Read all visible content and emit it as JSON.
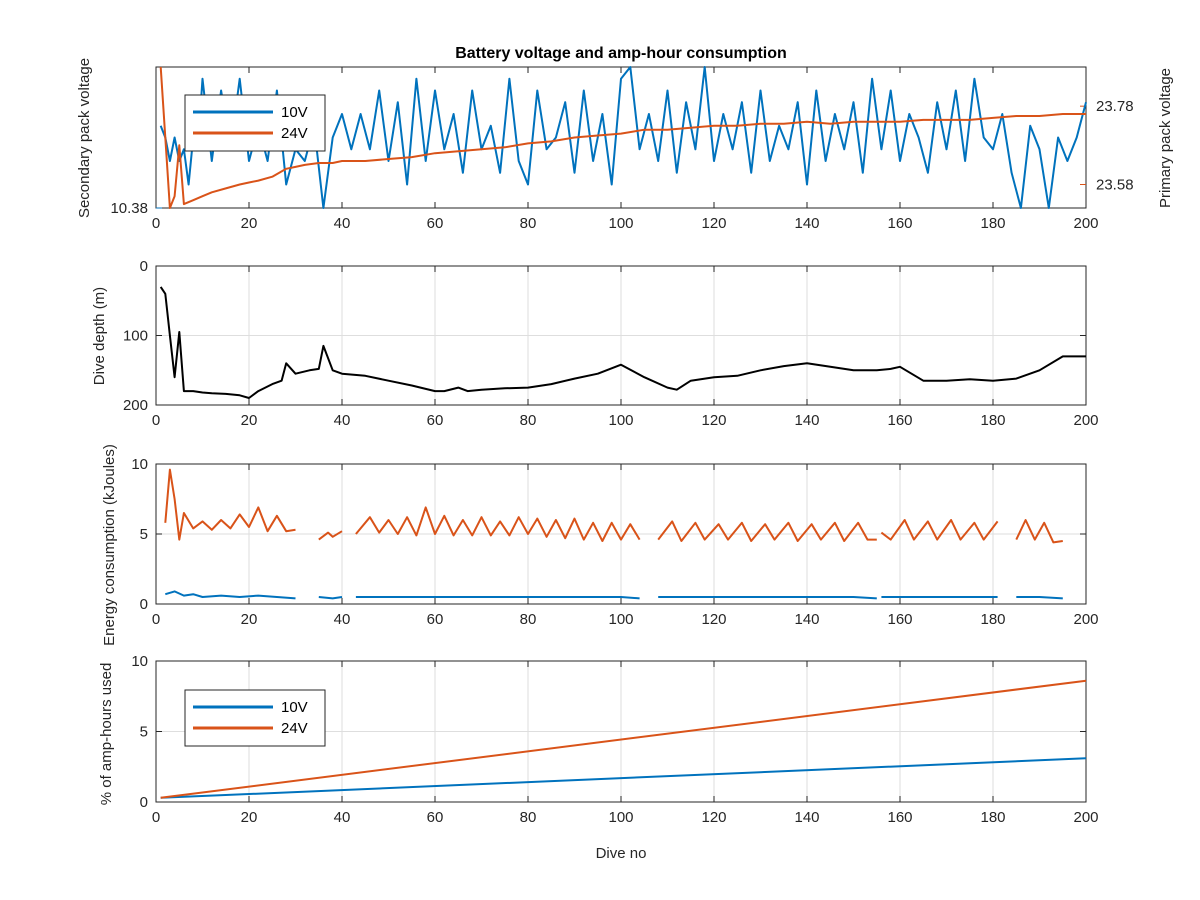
{
  "figure": {
    "title": "Battery voltage and amp-hour consumption",
    "xlabel": "Dive no"
  },
  "colors": {
    "blue": "#0072BD",
    "orange": "#D95319",
    "black": "#000000",
    "grid": "#DEDEDE",
    "axis": "#262626"
  },
  "chart_data": [
    {
      "type": "line",
      "name_key": "voltage",
      "title": "Battery voltage and amp-hour consumption",
      "xlim": [
        0,
        200
      ],
      "xticks": [
        0,
        20,
        40,
        60,
        80,
        100,
        120,
        140,
        160,
        180,
        200
      ],
      "ylabel_left": "Secondary pack voltage",
      "ylabel_right": "Primary pack voltage",
      "yticks_left": [
        10.38
      ],
      "yticks_right": [
        23.58,
        23.78
      ],
      "ylim_left": [
        10.38,
        10.5
      ],
      "ylim_right": [
        23.52,
        23.88
      ],
      "legend": {
        "placement": "top-left",
        "entries": [
          "10V",
          "24V"
        ]
      },
      "grid": false,
      "series": [
        {
          "name": "10V",
          "axis": "left",
          "color": "#0072BD",
          "x": [
            1,
            2,
            3,
            4,
            5,
            6,
            7,
            8,
            9,
            10,
            12,
            14,
            16,
            18,
            20,
            22,
            24,
            26,
            28,
            30,
            32,
            34,
            36,
            38,
            40,
            42,
            44,
            46,
            48,
            50,
            52,
            54,
            56,
            58,
            60,
            62,
            64,
            66,
            68,
            70,
            72,
            74,
            76,
            78,
            80,
            82,
            84,
            86,
            88,
            90,
            92,
            94,
            96,
            98,
            100,
            102,
            104,
            106,
            108,
            110,
            112,
            114,
            116,
            118,
            120,
            122,
            124,
            126,
            128,
            130,
            132,
            134,
            136,
            138,
            140,
            142,
            144,
            146,
            148,
            150,
            152,
            154,
            156,
            158,
            160,
            162,
            164,
            166,
            168,
            170,
            172,
            174,
            176,
            178,
            180,
            182,
            184,
            186,
            188,
            190,
            192,
            194,
            196,
            198,
            200
          ],
          "values": [
            10.45,
            10.44,
            10.42,
            10.44,
            10.42,
            10.43,
            10.4,
            10.44,
            10.43,
            10.49,
            10.42,
            10.48,
            10.43,
            10.49,
            10.42,
            10.45,
            10.42,
            10.48,
            10.4,
            10.43,
            10.42,
            10.45,
            10.38,
            10.44,
            10.46,
            10.43,
            10.46,
            10.43,
            10.48,
            10.42,
            10.47,
            10.4,
            10.49,
            10.42,
            10.48,
            10.43,
            10.46,
            10.41,
            10.48,
            10.43,
            10.45,
            10.41,
            10.49,
            10.42,
            10.4,
            10.48,
            10.43,
            10.44,
            10.47,
            10.41,
            10.48,
            10.42,
            10.46,
            10.4,
            10.49,
            10.5,
            10.43,
            10.46,
            10.42,
            10.48,
            10.41,
            10.47,
            10.43,
            10.5,
            10.42,
            10.46,
            10.43,
            10.47,
            10.41,
            10.48,
            10.42,
            10.45,
            10.43,
            10.47,
            10.4,
            10.48,
            10.42,
            10.46,
            10.43,
            10.47,
            10.41,
            10.49,
            10.43,
            10.48,
            10.42,
            10.46,
            10.44,
            10.41,
            10.47,
            10.43,
            10.48,
            10.42,
            10.49,
            10.44,
            10.43,
            10.46,
            10.41,
            10.38,
            10.45,
            10.43,
            10.38,
            10.44,
            10.42,
            10.44,
            10.47
          ]
        },
        {
          "name": "24V",
          "axis": "right",
          "color": "#D95319",
          "x": [
            1,
            2,
            3,
            4,
            5,
            6,
            8,
            10,
            12,
            15,
            18,
            20,
            22,
            25,
            28,
            30,
            32,
            35,
            38,
            40,
            45,
            50,
            55,
            60,
            65,
            70,
            75,
            80,
            85,
            90,
            95,
            100,
            105,
            110,
            115,
            120,
            125,
            130,
            135,
            140,
            145,
            150,
            155,
            160,
            165,
            170,
            175,
            180,
            185,
            190,
            195,
            200
          ],
          "values": [
            23.88,
            23.7,
            23.52,
            23.55,
            23.68,
            23.53,
            23.54,
            23.55,
            23.56,
            23.57,
            23.58,
            23.585,
            23.59,
            23.6,
            23.62,
            23.625,
            23.63,
            23.635,
            23.635,
            23.64,
            23.64,
            23.645,
            23.65,
            23.66,
            23.665,
            23.67,
            23.675,
            23.685,
            23.69,
            23.7,
            23.705,
            23.71,
            23.72,
            23.72,
            23.725,
            23.73,
            23.73,
            23.735,
            23.735,
            23.74,
            23.735,
            23.74,
            23.74,
            23.74,
            23.745,
            23.745,
            23.745,
            23.75,
            23.755,
            23.755,
            23.76,
            23.76
          ]
        }
      ]
    },
    {
      "type": "line",
      "name_key": "depth",
      "xlim": [
        0,
        200
      ],
      "xticks": [
        0,
        20,
        40,
        60,
        80,
        100,
        120,
        140,
        160,
        180,
        200
      ],
      "ylabel": "Dive depth (m)",
      "ylim": [
        0,
        200
      ],
      "yticks": [
        0,
        100,
        200
      ],
      "reversed": true,
      "grid": true,
      "series": [
        {
          "color": "#000000",
          "x": [
            1,
            2,
            3,
            4,
            5,
            6,
            8,
            10,
            12,
            15,
            18,
            20,
            22,
            25,
            27,
            28,
            30,
            33,
            35,
            36,
            38,
            40,
            45,
            50,
            55,
            60,
            62,
            65,
            67,
            70,
            75,
            80,
            85,
            90,
            95,
            100,
            105,
            110,
            112,
            115,
            120,
            125,
            130,
            135,
            140,
            145,
            150,
            155,
            158,
            160,
            165,
            170,
            175,
            180,
            185,
            190,
            195,
            200
          ],
          "values": [
            30,
            40,
            100,
            160,
            95,
            180,
            180,
            182,
            183,
            184,
            186,
            190,
            180,
            170,
            165,
            140,
            155,
            150,
            148,
            115,
            150,
            155,
            158,
            165,
            172,
            180,
            180,
            175,
            180,
            178,
            176,
            175,
            170,
            162,
            155,
            142,
            160,
            175,
            178,
            165,
            160,
            158,
            150,
            144,
            140,
            145,
            150,
            150,
            148,
            145,
            165,
            165,
            163,
            165,
            162,
            150,
            130,
            130
          ]
        }
      ]
    },
    {
      "type": "line",
      "name_key": "energy",
      "xlim": [
        0,
        200
      ],
      "xticks": [
        0,
        20,
        40,
        60,
        80,
        100,
        120,
        140,
        160,
        180,
        200
      ],
      "ylabel": "Energy consumption (kJoules)",
      "ylim": [
        0,
        10
      ],
      "yticks": [
        0,
        5,
        10
      ],
      "grid": true,
      "series": [
        {
          "name": "24V",
          "color": "#D95319",
          "segments": [
            {
              "x": [
                2,
                3,
                4,
                5,
                6,
                8,
                10,
                12,
                14,
                16,
                18,
                20,
                22,
                24,
                26,
                28,
                30
              ],
              "values": [
                5.8,
                9.6,
                7.5,
                4.6,
                6.5,
                5.4,
                5.9,
                5.3,
                6.0,
                5.4,
                6.4,
                5.5,
                6.9,
                5.2,
                6.3,
                5.2,
                5.3
              ]
            },
            {
              "x": [
                35,
                37,
                38,
                40
              ],
              "values": [
                4.6,
                5.1,
                4.8,
                5.2
              ]
            },
            {
              "x": [
                43,
                46,
                48,
                50,
                52,
                54,
                56,
                58,
                60,
                62,
                64,
                66,
                68,
                70,
                72,
                74,
                76,
                78,
                80,
                82,
                84,
                86,
                88,
                90,
                92,
                94,
                96,
                98,
                100,
                102,
                104
              ],
              "values": [
                5.0,
                6.2,
                5.1,
                6.0,
                5.0,
                6.2,
                4.9,
                6.9,
                5.0,
                6.3,
                4.9,
                6.0,
                4.9,
                6.2,
                4.9,
                5.9,
                4.9,
                6.2,
                5.0,
                6.1,
                4.8,
                6.0,
                4.7,
                6.1,
                4.6,
                5.8,
                4.5,
                5.8,
                4.6,
                5.7,
                4.6
              ]
            },
            {
              "x": [
                108,
                111,
                113,
                116,
                118,
                121,
                123,
                126,
                128,
                131,
                133,
                136,
                138,
                141,
                143,
                146,
                148,
                151,
                153,
                155
              ],
              "values": [
                4.6,
                5.9,
                4.5,
                5.8,
                4.6,
                5.7,
                4.6,
                5.8,
                4.5,
                5.7,
                4.6,
                5.8,
                4.5,
                5.7,
                4.6,
                5.8,
                4.5,
                5.8,
                4.6,
                4.6
              ]
            },
            {
              "x": [
                156,
                158,
                161,
                163,
                166,
                168,
                171,
                173,
                176,
                178,
                181
              ],
              "values": [
                5.1,
                4.6,
                6.0,
                4.6,
                5.9,
                4.6,
                6.0,
                4.6,
                5.8,
                4.6,
                5.9
              ]
            },
            {
              "x": [
                185,
                187,
                189,
                191,
                193,
                195
              ],
              "values": [
                4.6,
                6.0,
                4.6,
                5.8,
                4.4,
                4.5
              ]
            }
          ]
        },
        {
          "name": "10V",
          "color": "#0072BD",
          "segments": [
            {
              "x": [
                2,
                4,
                6,
                8,
                10,
                14,
                18,
                22,
                26,
                30
              ],
              "values": [
                0.7,
                0.9,
                0.6,
                0.7,
                0.5,
                0.6,
                0.5,
                0.6,
                0.5,
                0.4
              ]
            },
            {
              "x": [
                35,
                38,
                40
              ],
              "values": [
                0.5,
                0.4,
                0.5
              ]
            },
            {
              "x": [
                43,
                50,
                60,
                70,
                80,
                90,
                100,
                104
              ],
              "values": [
                0.5,
                0.5,
                0.5,
                0.5,
                0.5,
                0.5,
                0.5,
                0.4
              ]
            },
            {
              "x": [
                108,
                120,
                130,
                140,
                150,
                155
              ],
              "values": [
                0.5,
                0.5,
                0.5,
                0.5,
                0.5,
                0.4
              ]
            },
            {
              "x": [
                156,
                165,
                175,
                181
              ],
              "values": [
                0.5,
                0.5,
                0.5,
                0.5
              ]
            },
            {
              "x": [
                185,
                190,
                195
              ],
              "values": [
                0.5,
                0.5,
                0.4
              ]
            }
          ]
        }
      ]
    },
    {
      "type": "line",
      "name_key": "amphours",
      "xlim": [
        0,
        200
      ],
      "xticks": [
        0,
        20,
        40,
        60,
        80,
        100,
        120,
        140,
        160,
        180,
        200
      ],
      "xlabel": "Dive no",
      "ylabel": "% of amp-hours used",
      "ylim": [
        0,
        10
      ],
      "yticks": [
        0,
        5,
        10
      ],
      "grid": true,
      "legend": {
        "placement": "top-left",
        "entries": [
          "10V",
          "24V"
        ]
      },
      "series": [
        {
          "name": "10V",
          "color": "#0072BD",
          "x": [
            1,
            200
          ],
          "values": [
            0.3,
            3.1
          ]
        },
        {
          "name": "24V",
          "color": "#D95319",
          "x": [
            1,
            200
          ],
          "values": [
            0.3,
            8.6
          ]
        }
      ]
    }
  ]
}
